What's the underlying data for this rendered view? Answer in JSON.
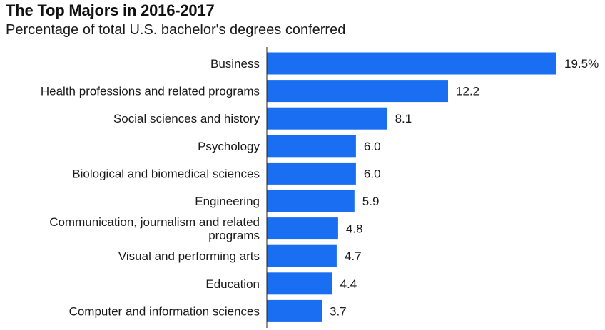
{
  "header": {
    "title": "The Top Majors in 2016-2017",
    "subtitle": "Percentage of total U.S. bachelor's degrees conferred"
  },
  "colors": {
    "bar": "#1a6ef2",
    "axis": "#222222",
    "text": "#1a1a1a"
  },
  "chart_data": {
    "type": "bar",
    "orientation": "horizontal",
    "title": "The Top Majors in 2016-2017",
    "subtitle": "Percentage of total U.S. bachelor's degrees conferred",
    "xlabel": "",
    "ylabel": "",
    "xlim": [
      0,
      19.5
    ],
    "grid": false,
    "legend": "none",
    "categories": [
      [
        "Business"
      ],
      [
        "Health professions and related programs"
      ],
      [
        "Social sciences and history"
      ],
      [
        "Psychology"
      ],
      [
        "Biological and biomedical sciences"
      ],
      [
        "Engineering"
      ],
      [
        "Communication, journalism and related",
        "programs"
      ],
      [
        "Visual and performing arts"
      ],
      [
        "Education"
      ],
      [
        "Computer and information sciences"
      ]
    ],
    "values": [
      19.5,
      12.2,
      8.1,
      6.0,
      6.0,
      5.9,
      4.8,
      4.7,
      4.4,
      3.7
    ],
    "value_labels": [
      "19.5%",
      "12.2",
      "8.1",
      "6.0",
      "6.0",
      "5.9",
      "4.8",
      "4.7",
      "4.4",
      "3.7"
    ]
  }
}
